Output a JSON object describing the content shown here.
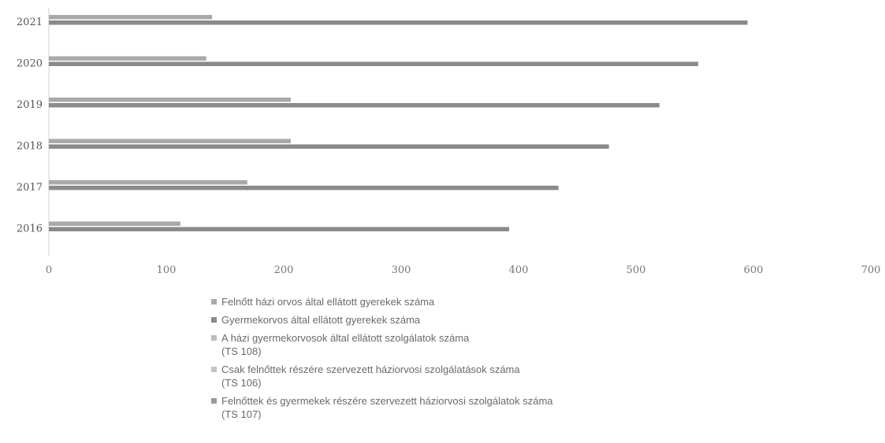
{
  "chart_data": {
    "type": "bar",
    "orientation": "horizontal",
    "categories": [
      "2021",
      "2020",
      "2019",
      "2018",
      "2017",
      "2016"
    ],
    "xlim": [
      0,
      700
    ],
    "xticks": [
      "0",
      "100",
      "200",
      "300",
      "400",
      "500",
      "600",
      "700"
    ],
    "series": [
      {
        "name": "Felnőtt házi orvos által ellátott gyerekek száma",
        "values": [
          139,
          134,
          206,
          206,
          169,
          112
        ],
        "color": "#a9a9a9"
      },
      {
        "name": "Gyermekorvos által ellátott gyerekek száma",
        "values": [
          595,
          553,
          520,
          477,
          434,
          392
        ],
        "color": "#8a8a8a"
      },
      {
        "name": "A házi gyermekorvosok által ellátott szolgálatok száma\n(TS 108)",
        "values": [
          0,
          0,
          0,
          0,
          0,
          0
        ],
        "color": "#bdbdbd"
      },
      {
        "name": "Csak felnőttek részére szervezett háziorvosi szolgálatások száma\n(TS 106)",
        "values": [
          0,
          0,
          0,
          0,
          0,
          0
        ],
        "color": "#c4c4c4"
      },
      {
        "name": "Felnőttek és gyermekek részére szervezett háziorvosi szolgálatok száma\n(TS 107)",
        "values": [
          0,
          0,
          0,
          0,
          0,
          0
        ],
        "color": "#9a9a9a"
      }
    ],
    "legend_position": "bottom",
    "grid": false
  }
}
